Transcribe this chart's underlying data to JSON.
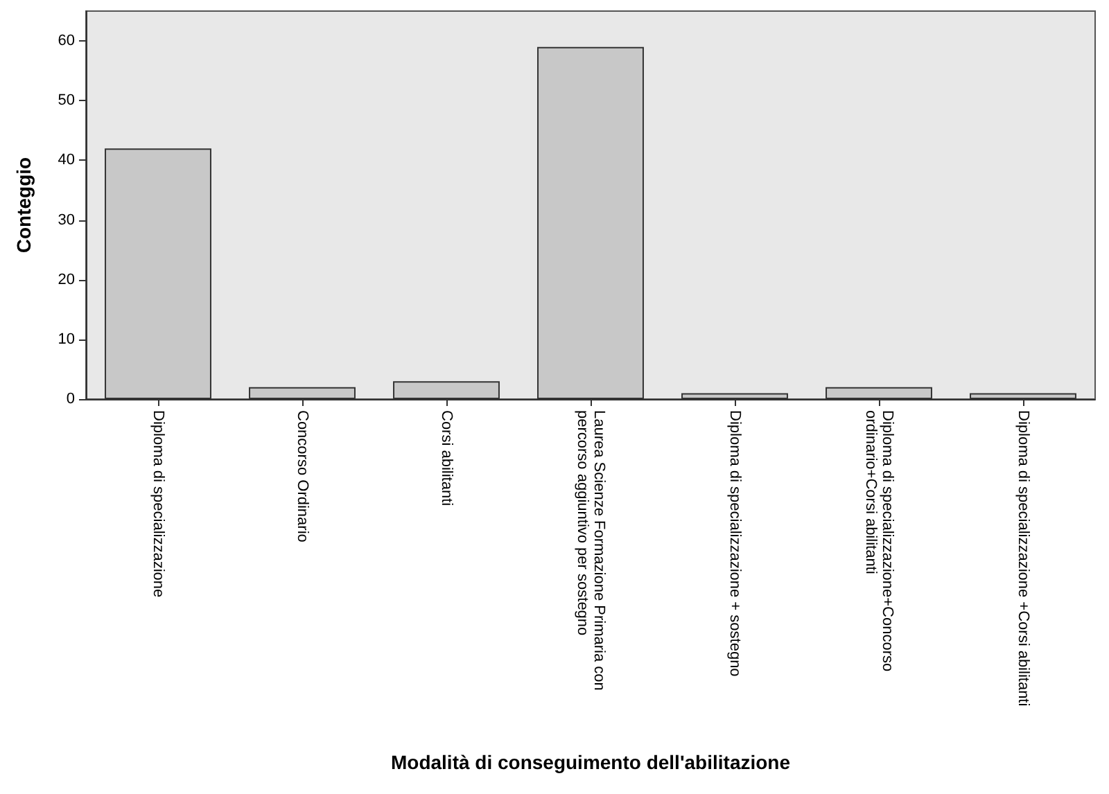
{
  "chart_data": {
    "type": "bar",
    "xlabel": "Modalità di conseguimento dell'abilitazione",
    "ylabel": "Conteggio",
    "categories": [
      "Diploma di specializzazione",
      "Concorso Ordinario",
      "Corsi abilitanti",
      "Laurea Scienze Formazione Primaria con percorso aggiuntivo per sostegno",
      "Diploma di specializzazione + sostegno",
      "Diploma di specializzazione+Concorso ordinario+Corsi abilitanti",
      "Diploma di specializzazione +Corsi abilitanti"
    ],
    "values": [
      42,
      2,
      3,
      59,
      1,
      2,
      1
    ],
    "color": "#c8c8c8",
    "ylim": [
      0,
      65
    ],
    "yticks": [
      0,
      10,
      20,
      30,
      40,
      50,
      60
    ],
    "grid": false
  }
}
